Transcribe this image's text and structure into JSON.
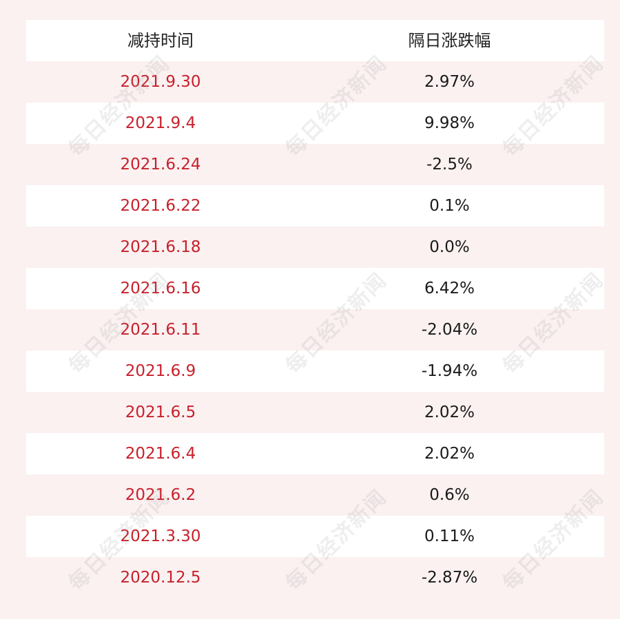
{
  "table": {
    "headers": [
      "减持时间",
      "隔日涨跌幅"
    ],
    "rows": [
      {
        "date": "2021.9.30",
        "change": "2.97%"
      },
      {
        "date": "2021.9.4",
        "change": "9.98%"
      },
      {
        "date": "2021.6.24",
        "change": "-2.5%"
      },
      {
        "date": "2021.6.22",
        "change": "0.1%"
      },
      {
        "date": "2021.6.18",
        "change": "0.0%"
      },
      {
        "date": "2021.6.16",
        "change": "6.42%"
      },
      {
        "date": "2021.6.11",
        "change": "-2.04%"
      },
      {
        "date": "2021.6.9",
        "change": "-1.94%"
      },
      {
        "date": "2021.6.5",
        "change": "2.02%"
      },
      {
        "date": "2021.6.4",
        "change": "2.02%"
      },
      {
        "date": "2021.6.2",
        "change": "0.6%"
      },
      {
        "date": "2021.3.30",
        "change": "0.11%"
      },
      {
        "date": "2020.12.5",
        "change": "-2.87%"
      }
    ]
  },
  "watermark": "每日经济新闻",
  "colors": {
    "date_text": "#c8202b",
    "value_text": "#1a1a1a",
    "row_light": "#ffffff",
    "row_tint": "#fbf1f1"
  }
}
